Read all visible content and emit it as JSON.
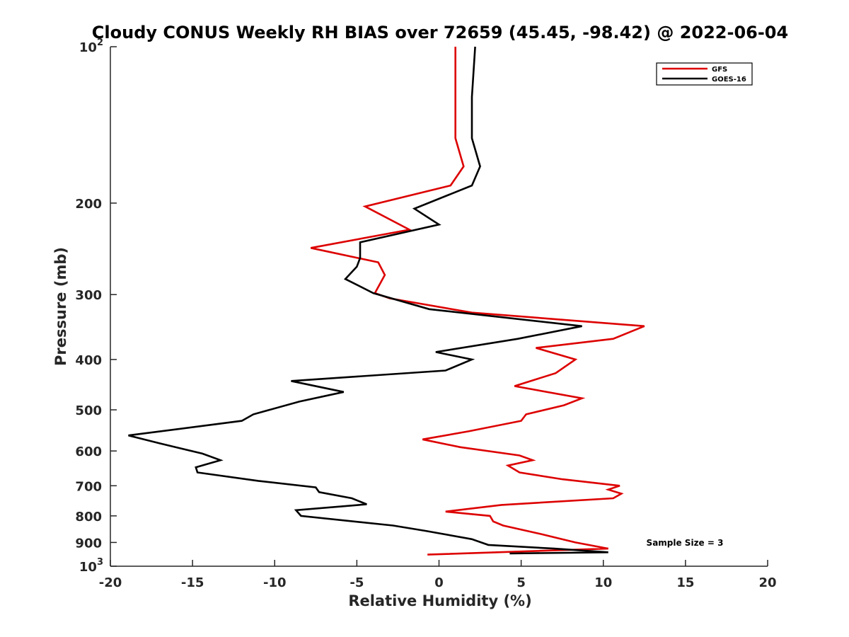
{
  "chart_data": {
    "type": "line",
    "title": "Cloudy CONUS Weekly RH BIAS over 72659 (45.45, -98.42) @ 2022-06-04",
    "xlabel": "Relative Humidity (%)",
    "ylabel": "Pressure (mb)",
    "xlim": [
      -20,
      20
    ],
    "ylim": [
      100,
      1000
    ],
    "y_scale": "log",
    "y_reversed": true,
    "x_ticks": [
      -20,
      -15,
      -10,
      -5,
      0,
      5,
      10,
      15,
      20
    ],
    "x_tick_labels": [
      "-20",
      "-15",
      "-10",
      "-5",
      "0",
      "5",
      "10",
      "15",
      "20"
    ],
    "y_ticks": [
      100,
      200,
      300,
      400,
      500,
      600,
      700,
      800,
      900,
      1000
    ],
    "y_tick_labels": [
      "10²",
      "200",
      "300",
      "400",
      "500",
      "600",
      "700",
      "800",
      "900",
      "10³"
    ],
    "grid": false,
    "legend_position": "top-right",
    "annotation": "Sample Size = 3",
    "series": [
      {
        "name": "GFS",
        "color": "#dd0000",
        "points": [
          [
            1.0,
            100
          ],
          [
            1.0,
            125
          ],
          [
            1.0,
            150
          ],
          [
            1.5,
            170
          ],
          [
            0.7,
            185
          ],
          [
            -4.5,
            203
          ],
          [
            -1.8,
            225
          ],
          [
            -7.8,
            244
          ],
          [
            -3.7,
            260
          ],
          [
            -3.3,
            275
          ],
          [
            -3.9,
            298
          ],
          [
            -3.0,
            305
          ],
          [
            2.0,
            325
          ],
          [
            12.5,
            345
          ],
          [
            10.6,
            365
          ],
          [
            5.9,
            380
          ],
          [
            8.3,
            400
          ],
          [
            7.1,
            425
          ],
          [
            4.6,
            450
          ],
          [
            8.7,
            475
          ],
          [
            7.6,
            490
          ],
          [
            5.3,
            510
          ],
          [
            5.0,
            525
          ],
          [
            1.8,
            550
          ],
          [
            -1.0,
            570
          ],
          [
            1.3,
            590
          ],
          [
            4.9,
            612
          ],
          [
            5.7,
            625
          ],
          [
            4.2,
            640
          ],
          [
            4.9,
            660
          ],
          [
            7.5,
            680
          ],
          [
            11.0,
            700
          ],
          [
            10.3,
            712
          ],
          [
            11.1,
            725
          ],
          [
            10.6,
            740
          ],
          [
            3.8,
            762
          ],
          [
            0.4,
            785
          ],
          [
            3.1,
            800
          ],
          [
            3.3,
            820
          ],
          [
            3.9,
            835
          ],
          [
            6.2,
            867
          ],
          [
            8.3,
            900
          ],
          [
            10.3,
            925
          ],
          [
            -0.7,
            950
          ]
        ]
      },
      {
        "name": "GOES-16",
        "color": "#000000",
        "points": [
          [
            2.2,
            100
          ],
          [
            2.0,
            125
          ],
          [
            2.0,
            150
          ],
          [
            2.5,
            170
          ],
          [
            2.0,
            185
          ],
          [
            -1.5,
            205
          ],
          [
            0.0,
            220
          ],
          [
            -4.8,
            238
          ],
          [
            -4.8,
            255
          ],
          [
            -5.0,
            265
          ],
          [
            -5.7,
            280
          ],
          [
            -4.0,
            298
          ],
          [
            -0.6,
            320
          ],
          [
            8.7,
            345
          ],
          [
            4.8,
            365
          ],
          [
            -0.2,
            387
          ],
          [
            2.0,
            400
          ],
          [
            0.4,
            420
          ],
          [
            -9.0,
            440
          ],
          [
            -5.8,
            462
          ],
          [
            -8.5,
            482
          ],
          [
            -11.3,
            510
          ],
          [
            -12.0,
            525
          ],
          [
            -18.9,
            560
          ],
          [
            -17.0,
            580
          ],
          [
            -14.4,
            607
          ],
          [
            -13.3,
            625
          ],
          [
            -14.8,
            645
          ],
          [
            -14.7,
            660
          ],
          [
            -11.0,
            685
          ],
          [
            -7.5,
            705
          ],
          [
            -7.3,
            720
          ],
          [
            -5.3,
            740
          ],
          [
            -4.4,
            760
          ],
          [
            -8.7,
            780
          ],
          [
            -8.4,
            800
          ],
          [
            -2.8,
            835
          ],
          [
            -0.8,
            855
          ],
          [
            2.0,
            887
          ],
          [
            3.0,
            910
          ],
          [
            7.0,
            925
          ],
          [
            10.3,
            940
          ],
          [
            4.3,
            945
          ]
        ]
      }
    ]
  }
}
